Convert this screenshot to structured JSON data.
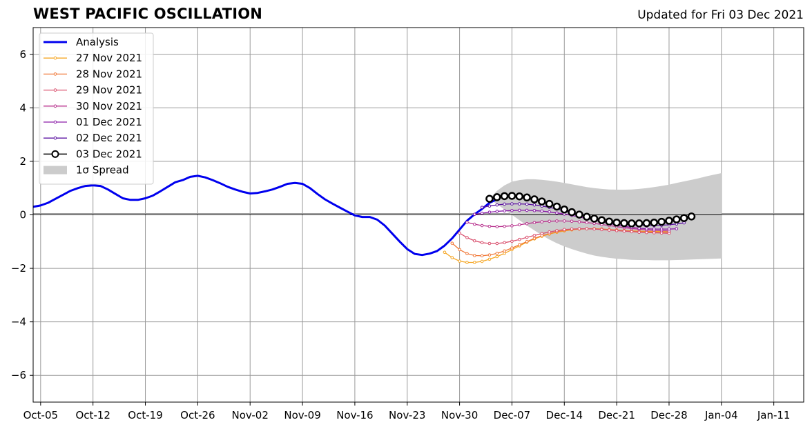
{
  "chart_data": {
    "type": "line",
    "title": "WEST PACIFIC OSCILLATION",
    "subtitle": "Updated for Fri 03 Dec 2021",
    "x_ticks": [
      "Oct-05",
      "Oct-12",
      "Oct-19",
      "Oct-26",
      "Nov-02",
      "Nov-09",
      "Nov-16",
      "Nov-23",
      "Nov-30",
      "Dec-07",
      "Dec-14",
      "Dec-21",
      "Dec-28",
      "Jan-04",
      "Jan-11"
    ],
    "y_ticks": [
      "6",
      "4",
      "2",
      "0",
      "−2",
      "−4",
      "−6"
    ],
    "y_tick_values": [
      6,
      4,
      2,
      0,
      -2,
      -4,
      -6
    ],
    "ylim": [
      -7,
      7
    ],
    "xlim": [
      "2021-10-04",
      "2022-01-15"
    ],
    "grid": true,
    "legend_position": "upper-left",
    "analysis": {
      "name": "Analysis",
      "color": "#0000ee",
      "start": "2021-10-04",
      "values": [
        0.3,
        0.35,
        0.45,
        0.6,
        0.75,
        0.9,
        1.0,
        1.08,
        1.1,
        1.08,
        0.95,
        0.78,
        0.62,
        0.56,
        0.56,
        0.62,
        0.72,
        0.88,
        1.05,
        1.22,
        1.3,
        1.42,
        1.46,
        1.4,
        1.3,
        1.18,
        1.05,
        0.95,
        0.86,
        0.8,
        0.82,
        0.88,
        0.95,
        1.05,
        1.16,
        1.19,
        1.16,
        1.0,
        0.78,
        0.58,
        0.42,
        0.27,
        0.12,
        -0.02,
        -0.08,
        -0.08,
        -0.18,
        -0.4,
        -0.7,
        -1.0,
        -1.28,
        -1.46,
        -1.5,
        -1.45,
        -1.35,
        -1.15,
        -0.88,
        -0.55,
        -0.22,
        0.02,
        0.22,
        0.45,
        0.58
      ]
    },
    "forecasts": [
      {
        "name": "27 Nov 2021",
        "color": "#f5a623",
        "start": "2021-11-28",
        "values": [
          -1.4,
          -1.6,
          -1.73,
          -1.78,
          -1.78,
          -1.74,
          -1.66,
          -1.56,
          -1.44,
          -1.3,
          -1.16,
          -1.02,
          -0.9,
          -0.8,
          -0.72,
          -0.65,
          -0.6,
          -0.56,
          -0.53,
          -0.52,
          -0.52,
          -0.53,
          -0.55,
          -0.57,
          -0.59,
          -0.6,
          -0.61,
          -0.62,
          -0.62,
          -0.62,
          -0.63
        ]
      },
      {
        "name": "28 Nov 2021",
        "color": "#f07838",
        "start": "2021-11-29",
        "values": [
          -1.06,
          -1.3,
          -1.45,
          -1.52,
          -1.53,
          -1.5,
          -1.44,
          -1.35,
          -1.24,
          -1.12,
          -1.0,
          -0.88,
          -0.78,
          -0.7,
          -0.63,
          -0.58,
          -0.55,
          -0.53,
          -0.52,
          -0.52,
          -0.53,
          -0.55,
          -0.57,
          -0.59,
          -0.61,
          -0.63,
          -0.64,
          -0.65,
          -0.66,
          -0.67
        ]
      },
      {
        "name": "29 Nov 2021",
        "color": "#d9506e",
        "start": "2021-11-30",
        "values": [
          -0.68,
          -0.85,
          -0.97,
          -1.04,
          -1.07,
          -1.07,
          -1.04,
          -0.99,
          -0.92,
          -0.84,
          -0.77,
          -0.7,
          -0.64,
          -0.59,
          -0.55,
          -0.53,
          -0.52,
          -0.52,
          -0.53,
          -0.55,
          -0.57,
          -0.59,
          -0.61,
          -0.63,
          -0.65,
          -0.66,
          -0.67,
          -0.68,
          -0.69
        ]
      },
      {
        "name": "30 Nov 2021",
        "color": "#b8328e",
        "start": "2021-12-01",
        "values": [
          -0.28,
          -0.35,
          -0.4,
          -0.43,
          -0.44,
          -0.43,
          -0.41,
          -0.37,
          -0.33,
          -0.29,
          -0.26,
          -0.24,
          -0.23,
          -0.23,
          -0.24,
          -0.26,
          -0.29,
          -0.32,
          -0.36,
          -0.4,
          -0.44,
          -0.48,
          -0.51,
          -0.54,
          -0.56,
          -0.58,
          -0.59,
          -0.6
        ]
      },
      {
        "name": "01 Dec 2021",
        "color": "#8a1aa8",
        "start": "2021-12-02",
        "values": [
          0.02,
          0.06,
          0.1,
          0.13,
          0.15,
          0.16,
          0.17,
          0.17,
          0.16,
          0.14,
          0.11,
          0.07,
          0.03,
          -0.02,
          -0.08,
          -0.14,
          -0.2,
          -0.26,
          -0.32,
          -0.38,
          -0.43,
          -0.47,
          -0.5,
          -0.52,
          -0.53,
          -0.53,
          -0.53,
          -0.52
        ]
      },
      {
        "name": "02 Dec 2021",
        "color": "#5a10a0",
        "start": "2021-12-03",
        "values": [
          0.28,
          0.33,
          0.37,
          0.4,
          0.41,
          0.41,
          0.4,
          0.37,
          0.33,
          0.28,
          0.22,
          0.15,
          0.08,
          0.01,
          -0.06,
          -0.13,
          -0.19,
          -0.25,
          -0.3,
          -0.34,
          -0.37,
          -0.39,
          -0.4,
          -0.4,
          -0.39,
          -0.37,
          -0.34,
          -0.3
        ]
      },
      {
        "name": "03 Dec 2021",
        "color": "#000000",
        "start": "2021-12-04",
        "values": [
          0.6,
          0.66,
          0.7,
          0.71,
          0.69,
          0.65,
          0.58,
          0.5,
          0.41,
          0.31,
          0.2,
          0.1,
          0.01,
          -0.07,
          -0.14,
          -0.2,
          -0.25,
          -0.29,
          -0.31,
          -0.32,
          -0.32,
          -0.31,
          -0.29,
          -0.26,
          -0.22,
          -0.17,
          -0.12,
          -0.06
        ]
      }
    ],
    "spread": {
      "name": "1σ Spread",
      "color": "#cccccc",
      "start": "2021-12-04",
      "upper": [
        0.6,
        0.9,
        1.1,
        1.24,
        1.3,
        1.33,
        1.33,
        1.31,
        1.28,
        1.24,
        1.19,
        1.14,
        1.09,
        1.04,
        1.0,
        0.97,
        0.95,
        0.94,
        0.94,
        0.95,
        0.97,
        1.0,
        1.04,
        1.08,
        1.13,
        1.19,
        1.25,
        1.31,
        1.37,
        1.44,
        1.5,
        1.56
      ],
      "lower": [
        0.6,
        0.4,
        0.2,
        0.0,
        -0.2,
        -0.4,
        -0.58,
        -0.76,
        -0.92,
        -1.06,
        -1.18,
        -1.28,
        -1.37,
        -1.45,
        -1.52,
        -1.57,
        -1.61,
        -1.64,
        -1.66,
        -1.68,
        -1.69,
        -1.69,
        -1.7,
        -1.7,
        -1.7,
        -1.69,
        -1.68,
        -1.67,
        -1.66,
        -1.65,
        -1.64,
        -1.63
      ]
    }
  }
}
